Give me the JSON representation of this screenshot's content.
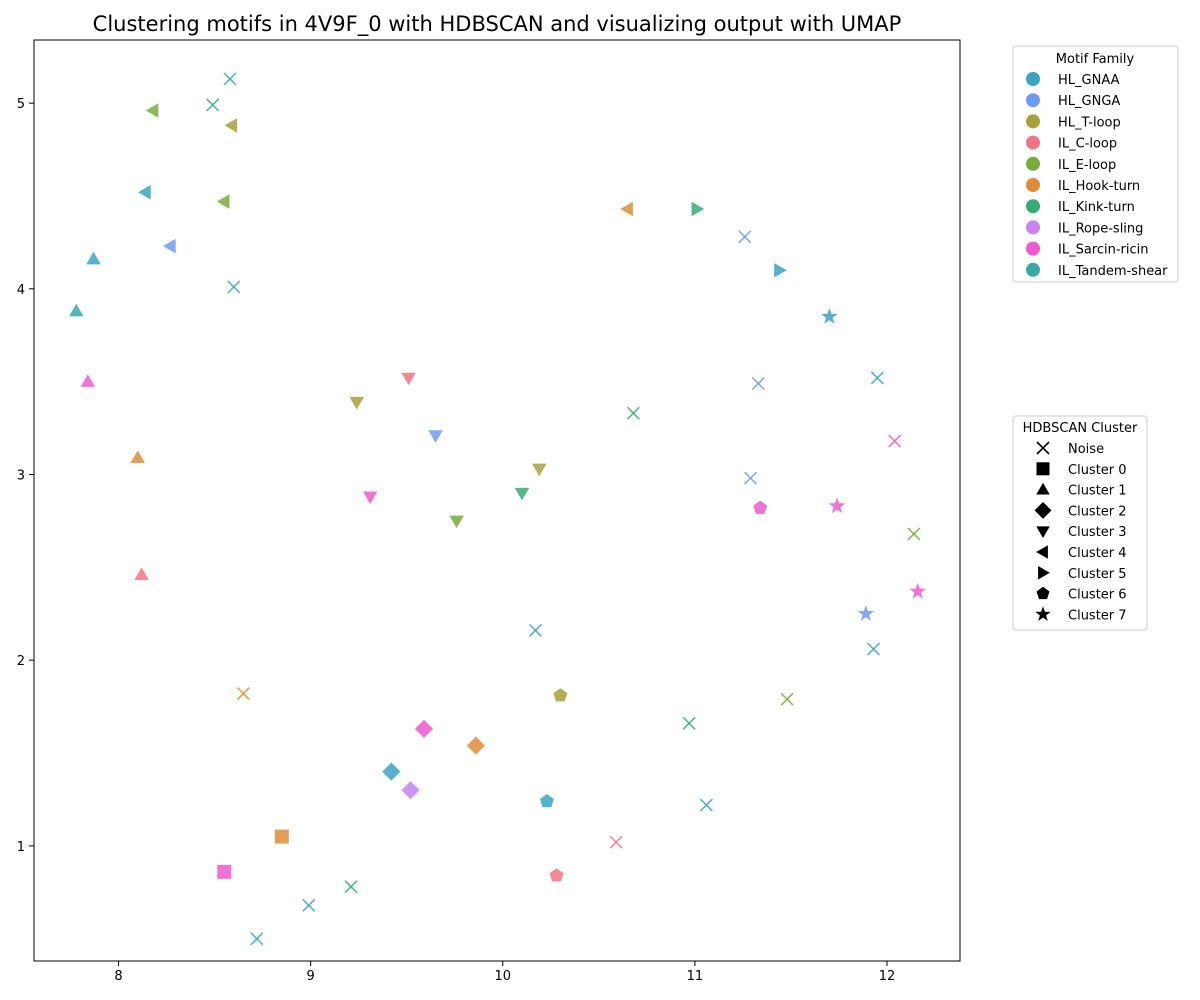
{
  "chart_data": {
    "type": "scatter",
    "title": "Clustering motifs in 4V9F_0 with HDBSCAN and visualizing output with UMAP",
    "xlabel": "",
    "ylabel": "",
    "xlim": [
      7.56,
      12.38
    ],
    "ylim": [
      0.38,
      5.34
    ],
    "xticks": [
      8,
      9,
      10,
      11,
      12
    ],
    "yticks": [
      1,
      2,
      3,
      4,
      5
    ],
    "grid": false,
    "families": [
      {
        "name": "HL_GNAA",
        "color": "#3ba3c3"
      },
      {
        "name": "HL_GNGA",
        "color": "#6e9bf2"
      },
      {
        "name": "HL_T-loop",
        "color": "#a8a03a"
      },
      {
        "name": "IL_C-loop",
        "color": "#f27585"
      },
      {
        "name": "IL_E-loop",
        "color": "#78ab3a"
      },
      {
        "name": "IL_Hook-turn",
        "color": "#de8c3a"
      },
      {
        "name": "IL_Kink-turn",
        "color": "#37ab76"
      },
      {
        "name": "IL_Rope-sling",
        "color": "#c783f0"
      },
      {
        "name": "IL_Sarcin-ricin",
        "color": "#ec5bd0"
      },
      {
        "name": "IL_Tandem-shear",
        "color": "#37aaa6"
      }
    ],
    "clusters": [
      {
        "label": "Noise",
        "marker": "x"
      },
      {
        "label": "Cluster 0",
        "marker": "square"
      },
      {
        "label": "Cluster 1",
        "marker": "triangle-up"
      },
      {
        "label": "Cluster 2",
        "marker": "diamond"
      },
      {
        "label": "Cluster 3",
        "marker": "triangle-down"
      },
      {
        "label": "Cluster 4",
        "marker": "triangle-left"
      },
      {
        "label": "Cluster 5",
        "marker": "triangle-right"
      },
      {
        "label": "Cluster 6",
        "marker": "pentagon"
      },
      {
        "label": "Cluster 7",
        "marker": "star"
      }
    ],
    "legend_family_title": "Motif Family",
    "legend_cluster_title": "HDBSCAN Cluster",
    "legend_placement": "outside-right",
    "points": [
      {
        "x": 8.58,
        "y": 5.13,
        "family": 0,
        "cluster": 0
      },
      {
        "x": 8.49,
        "y": 4.99,
        "family": 6,
        "cluster": 0
      },
      {
        "x": 8.6,
        "y": 4.01,
        "family": 0,
        "cluster": 0
      },
      {
        "x": 11.26,
        "y": 4.28,
        "family": 1,
        "cluster": 0
      },
      {
        "x": 11.33,
        "y": 3.49,
        "family": 1,
        "cluster": 0
      },
      {
        "x": 11.95,
        "y": 3.52,
        "family": 0,
        "cluster": 0
      },
      {
        "x": 10.68,
        "y": 3.33,
        "family": 6,
        "cluster": 0
      },
      {
        "x": 12.04,
        "y": 3.18,
        "family": 8,
        "cluster": 0
      },
      {
        "x": 11.29,
        "y": 2.98,
        "family": 1,
        "cluster": 0
      },
      {
        "x": 12.14,
        "y": 2.68,
        "family": 4,
        "cluster": 0
      },
      {
        "x": 10.17,
        "y": 2.16,
        "family": 0,
        "cluster": 0
      },
      {
        "x": 11.93,
        "y": 2.06,
        "family": 0,
        "cluster": 0
      },
      {
        "x": 8.65,
        "y": 1.82,
        "family": 5,
        "cluster": 0
      },
      {
        "x": 11.48,
        "y": 1.79,
        "family": 4,
        "cluster": 0
      },
      {
        "x": 10.97,
        "y": 1.66,
        "family": 6,
        "cluster": 0
      },
      {
        "x": 11.06,
        "y": 1.22,
        "family": 0,
        "cluster": 0
      },
      {
        "x": 10.59,
        "y": 1.02,
        "family": 3,
        "cluster": 0
      },
      {
        "x": 9.21,
        "y": 0.78,
        "family": 6,
        "cluster": 0
      },
      {
        "x": 8.99,
        "y": 0.68,
        "family": 0,
        "cluster": 0
      },
      {
        "x": 8.72,
        "y": 0.5,
        "family": 0,
        "cluster": 0
      },
      {
        "x": 8.85,
        "y": 1.05,
        "family": 5,
        "cluster": 1
      },
      {
        "x": 8.55,
        "y": 0.86,
        "family": 8,
        "cluster": 1
      },
      {
        "x": 7.87,
        "y": 4.16,
        "family": 0,
        "cluster": 2
      },
      {
        "x": 7.78,
        "y": 3.88,
        "family": 9,
        "cluster": 2
      },
      {
        "x": 7.84,
        "y": 3.5,
        "family": 8,
        "cluster": 2
      },
      {
        "x": 8.1,
        "y": 3.09,
        "family": 5,
        "cluster": 2
      },
      {
        "x": 8.12,
        "y": 2.46,
        "family": 3,
        "cluster": 2
      },
      {
        "x": 9.42,
        "y": 1.4,
        "family": 0,
        "cluster": 3
      },
      {
        "x": 9.59,
        "y": 1.63,
        "family": 8,
        "cluster": 3
      },
      {
        "x": 9.52,
        "y": 1.3,
        "family": 7,
        "cluster": 3
      },
      {
        "x": 9.86,
        "y": 1.54,
        "family": 5,
        "cluster": 3
      },
      {
        "x": 9.51,
        "y": 3.52,
        "family": 3,
        "cluster": 4
      },
      {
        "x": 9.24,
        "y": 3.39,
        "family": 2,
        "cluster": 4
      },
      {
        "x": 9.65,
        "y": 3.21,
        "family": 1,
        "cluster": 4
      },
      {
        "x": 9.31,
        "y": 2.88,
        "family": 8,
        "cluster": 4
      },
      {
        "x": 10.19,
        "y": 3.03,
        "family": 2,
        "cluster": 4
      },
      {
        "x": 10.1,
        "y": 2.9,
        "family": 6,
        "cluster": 4
      },
      {
        "x": 9.76,
        "y": 2.75,
        "family": 4,
        "cluster": 4
      },
      {
        "x": 8.18,
        "y": 4.96,
        "family": 4,
        "cluster": 5
      },
      {
        "x": 8.59,
        "y": 4.88,
        "family": 2,
        "cluster": 5
      },
      {
        "x": 8.14,
        "y": 4.52,
        "family": 0,
        "cluster": 5
      },
      {
        "x": 8.55,
        "y": 4.47,
        "family": 4,
        "cluster": 5
      },
      {
        "x": 8.27,
        "y": 4.23,
        "family": 1,
        "cluster": 5
      },
      {
        "x": 10.65,
        "y": 4.43,
        "family": 5,
        "cluster": 5
      },
      {
        "x": 11.01,
        "y": 4.43,
        "family": 6,
        "cluster": 6
      },
      {
        "x": 11.44,
        "y": 4.1,
        "family": 0,
        "cluster": 6
      },
      {
        "x": 10.3,
        "y": 1.81,
        "family": 2,
        "cluster": 7
      },
      {
        "x": 10.23,
        "y": 1.24,
        "family": 0,
        "cluster": 7
      },
      {
        "x": 10.28,
        "y": 0.84,
        "family": 3,
        "cluster": 7
      },
      {
        "x": 11.34,
        "y": 2.82,
        "family": 8,
        "cluster": 7
      },
      {
        "x": 11.7,
        "y": 3.85,
        "family": 0,
        "cluster": 8
      },
      {
        "x": 11.74,
        "y": 2.83,
        "family": 8,
        "cluster": 8
      },
      {
        "x": 12.16,
        "y": 2.37,
        "family": 8,
        "cluster": 8
      },
      {
        "x": 11.89,
        "y": 2.25,
        "family": 1,
        "cluster": 8
      }
    ]
  }
}
